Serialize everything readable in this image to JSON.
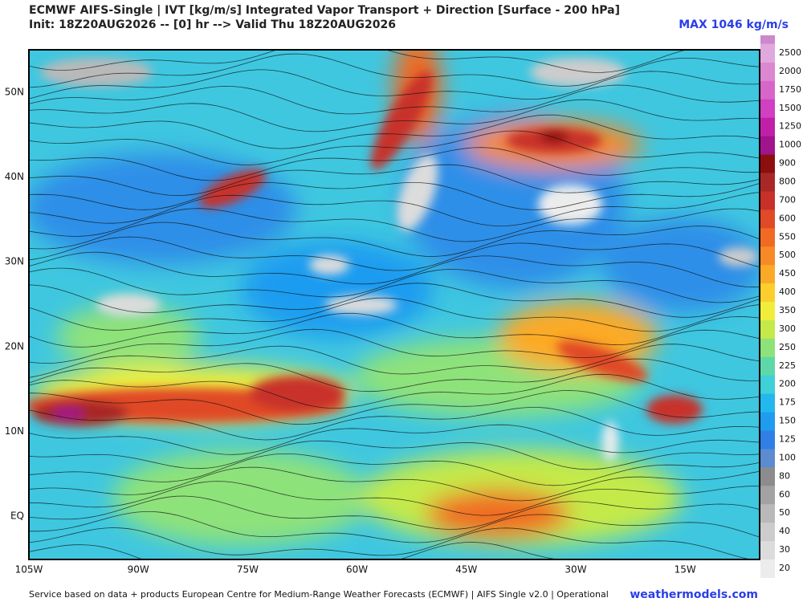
{
  "header": {
    "title": "ECMWF AIFS-Single | IVT [kg/m/s] Integrated Vapor Transport + Direction [Surface - 200 hPa]",
    "subtitle": "Init: 18Z20AUG2026 -- [0] hr --> Valid Thu 18Z20AUG2026",
    "max_label": "MAX 1046 kg/m/s"
  },
  "map": {
    "lat_labels": [
      "50N",
      "40N",
      "30N",
      "20N",
      "10N",
      "EQ"
    ],
    "lon_labels": [
      "105W",
      "90W",
      "75W",
      "60W",
      "45W",
      "30W",
      "15W"
    ]
  },
  "colorbar": {
    "levels": [
      {
        "label": "20",
        "color": "#ececec"
      },
      {
        "label": "30",
        "color": "#dcdcdc"
      },
      {
        "label": "40",
        "color": "#cccccc"
      },
      {
        "label": "50",
        "color": "#b9b9b9"
      },
      {
        "label": "60",
        "color": "#a3a3a3"
      },
      {
        "label": "80",
        "color": "#8c8c8c"
      },
      {
        "label": "100",
        "color": "#5a8ccf"
      },
      {
        "label": "125",
        "color": "#2f7fe6"
      },
      {
        "label": "150",
        "color": "#1f9cf0"
      },
      {
        "label": "175",
        "color": "#22b8ee"
      },
      {
        "label": "200",
        "color": "#3fd0d8"
      },
      {
        "label": "225",
        "color": "#5ed8a8"
      },
      {
        "label": "250",
        "color": "#8ee27a"
      },
      {
        "label": "300",
        "color": "#c4ea4a"
      },
      {
        "label": "350",
        "color": "#f0ee3a"
      },
      {
        "label": "400",
        "color": "#fccf2e"
      },
      {
        "label": "450",
        "color": "#fbaa28"
      },
      {
        "label": "500",
        "color": "#f78a26"
      },
      {
        "label": "550",
        "color": "#f06a24"
      },
      {
        "label": "600",
        "color": "#e04a26"
      },
      {
        "label": "700",
        "color": "#c8302a"
      },
      {
        "label": "800",
        "color": "#a82828"
      },
      {
        "label": "900",
        "color": "#8c0f0f"
      },
      {
        "label": "1000",
        "color": "#a0148c"
      },
      {
        "label": "1250",
        "color": "#c020a8"
      },
      {
        "label": "1500",
        "color": "#d040c0"
      },
      {
        "label": "1750",
        "color": "#d866c8"
      },
      {
        "label": "2000",
        "color": "#dc88d0"
      },
      {
        "label": "2500",
        "color": "#e0a8dc"
      }
    ],
    "top_color": "#cc88cc"
  },
  "footer": {
    "credit": "Service based on data + products European Centre for Medium-Range Weather Forecasts (ECMWF) | AIFS Single v2.0 | Operational",
    "brand": "weathermodels.com"
  }
}
